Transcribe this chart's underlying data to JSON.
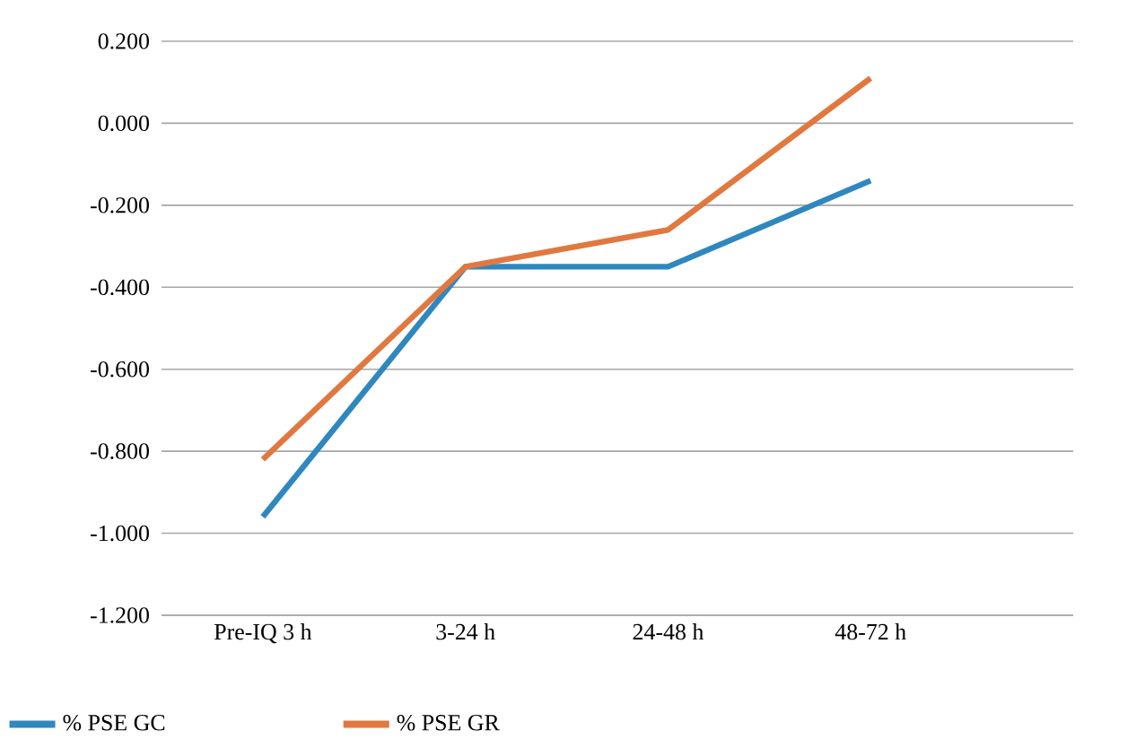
{
  "chart_data": {
    "type": "line",
    "categories": [
      "Pre-IQ 3 h",
      "3-24 h",
      "24-48 h",
      "48-72 h"
    ],
    "series": [
      {
        "name": "% PSE GC",
        "color": "#2f87bf",
        "values": [
          -0.96,
          -0.35,
          -0.35,
          -0.14
        ]
      },
      {
        "name": "% PSE GR",
        "color": "#e1783f",
        "values": [
          -0.82,
          -0.35,
          -0.26,
          0.11
        ]
      }
    ],
    "ylim": [
      -1.2,
      0.2
    ],
    "yticks": [
      {
        "value": -1.2,
        "label": "-1.200"
      },
      {
        "value": -1.0,
        "label": "-1.000"
      },
      {
        "value": -0.8,
        "label": "-0.800"
      },
      {
        "value": -0.6,
        "label": "-0.600"
      },
      {
        "value": -0.4,
        "label": "-0.400"
      },
      {
        "value": -0.2,
        "label": "-0.200"
      },
      {
        "value": 0.0,
        "label": "0.000"
      },
      {
        "value": 0.2,
        "label": "0.200"
      }
    ],
    "grid": "y",
    "legend": "bottom",
    "marker": "none",
    "line_style": "solid"
  }
}
